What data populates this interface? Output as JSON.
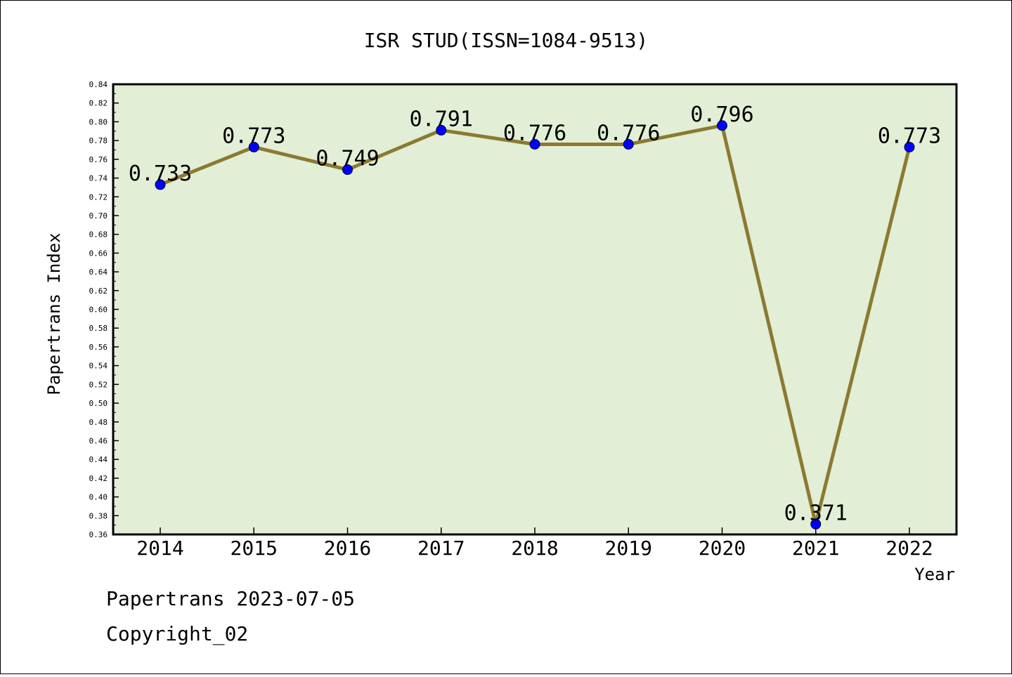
{
  "chart_data": {
    "type": "line",
    "title": "ISR STUD(ISSN=1084-9513)",
    "xlabel": "Year",
    "ylabel": "Papertrans Index",
    "categories": [
      "2014",
      "2015",
      "2016",
      "2017",
      "2018",
      "2019",
      "2020",
      "2021",
      "2022"
    ],
    "series": [
      {
        "values": [
          0.733,
          0.773,
          0.749,
          0.791,
          0.776,
          0.776,
          0.796,
          0.371,
          0.773
        ],
        "value_labels": [
          "0.733",
          "0.773",
          "0.749",
          "0.791",
          "0.776",
          "0.776",
          "0.796",
          "0.371",
          "0.773"
        ]
      }
    ],
    "ylim": [
      0.36,
      0.84
    ],
    "ytick_step": 0.02,
    "grid": false,
    "legend": "none",
    "colors": {
      "plot_background": "#e2efd6",
      "line": "#8c7a32",
      "marker": "#0000ff"
    }
  },
  "footer": {
    "stamp": "Papertrans 2023-07-05",
    "copyright": "Copyright_02"
  }
}
